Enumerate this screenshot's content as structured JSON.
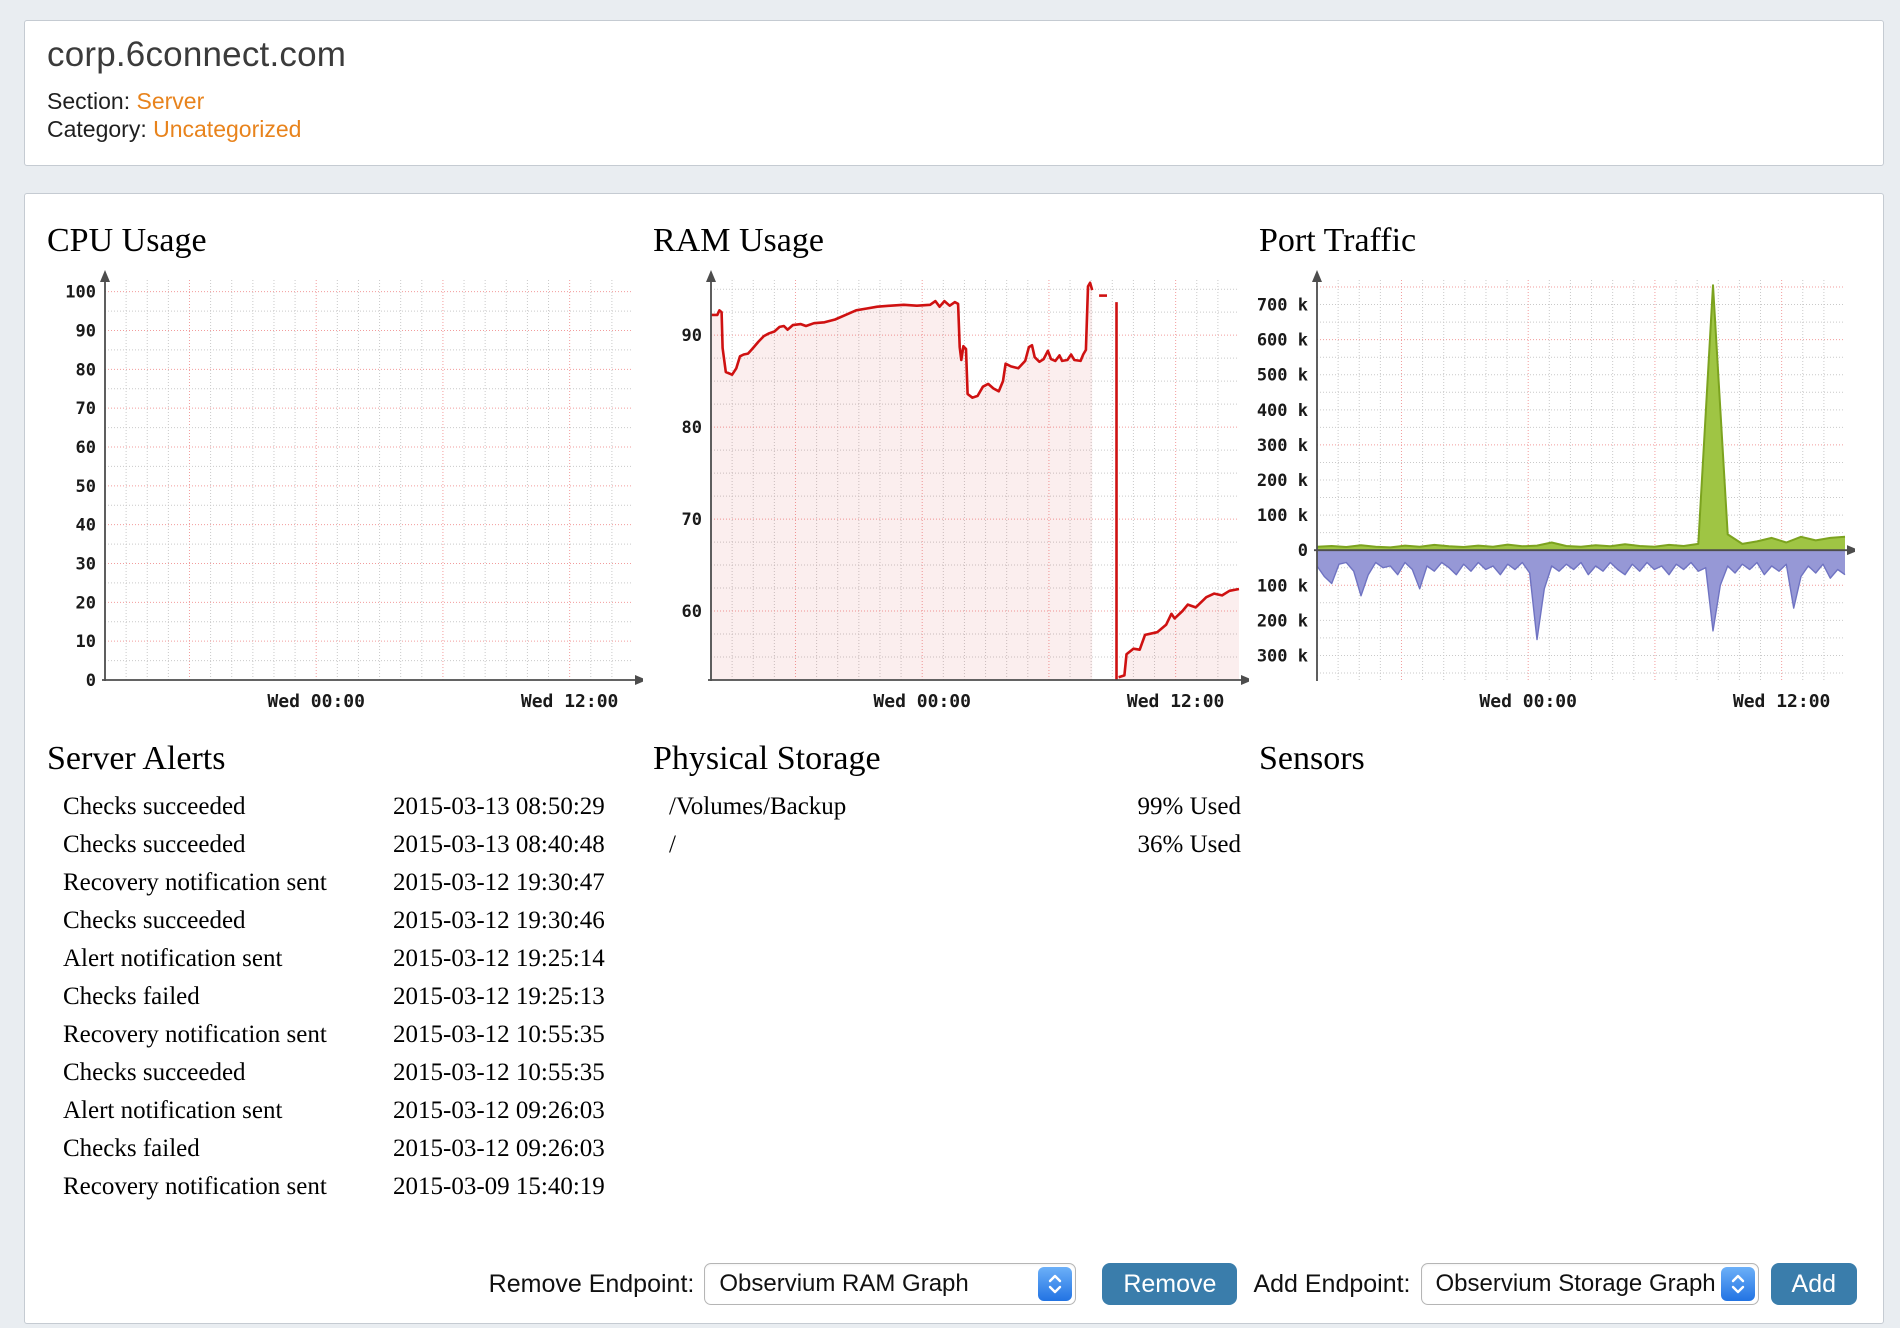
{
  "header": {
    "title": "corp.6connect.com",
    "section_label": "Section:",
    "section_value": "Server",
    "category_label": "Category:",
    "category_value": "Uncategorized"
  },
  "colors": {
    "page_bg": "#e9edf1",
    "panel_border": "#c5cbd2",
    "link_orange": "#e8831c",
    "button_blue": "#3a7dab",
    "stepper_blue": "#2273e3",
    "ram_line_red": "#cf1111",
    "traffic_green": "#9fc544",
    "traffic_purple": "#9698d6",
    "grid_red": "#f29c9c",
    "grid_gray": "#c9c9c9",
    "axis_gray": "#4d4d4d"
  },
  "charts": [
    {
      "title": "CPU Usage",
      "type": "line",
      "ymin": 0,
      "ymax": 103,
      "grid_min": 5,
      "grid_max": 100,
      "minor_step": 5,
      "majors": [
        10,
        20,
        30,
        40,
        50,
        60,
        70,
        80,
        90,
        100
      ],
      "ylabels": [
        {
          "v": 0,
          "t": "0"
        },
        {
          "v": 10,
          "t": "10"
        },
        {
          "v": 20,
          "t": "20"
        },
        {
          "v": 30,
          "t": "30"
        },
        {
          "v": 40,
          "t": "40"
        },
        {
          "v": 50,
          "t": "50"
        },
        {
          "v": 60,
          "t": "60"
        },
        {
          "v": 70,
          "t": "70"
        },
        {
          "v": 80,
          "t": "80"
        },
        {
          "v": 90,
          "t": "90"
        },
        {
          "v": 100,
          "t": "100"
        }
      ],
      "xlabels": [
        {
          "f": 0.4,
          "t": "Wed 00:00"
        },
        {
          "f": 0.88,
          "t": "Wed 12:00"
        }
      ],
      "x_majors": [
        0.16,
        0.4,
        0.64,
        0.88
      ],
      "x_minor_step": 0.04,
      "axis_at_zero": false,
      "series": []
    },
    {
      "title": "RAM Usage",
      "type": "area",
      "ymin": 52.5,
      "ymax": 96,
      "grid_min": 55,
      "grid_max": 95,
      "minor_step": 2.5,
      "majors": [
        60,
        70,
        80,
        90
      ],
      "ylabels": [
        {
          "v": 60,
          "t": "60"
        },
        {
          "v": 70,
          "t": "70"
        },
        {
          "v": 80,
          "t": "80"
        },
        {
          "v": 90,
          "t": "90"
        }
      ],
      "xlabels": [
        {
          "f": 0.4,
          "t": "Wed 00:00"
        },
        {
          "f": 0.88,
          "t": "Wed 12:00"
        }
      ],
      "x_majors": [
        0.16,
        0.4,
        0.64,
        0.88
      ],
      "x_minor_step": 0.04,
      "axis_at_zero": false,
      "series": [
        {
          "color": "#cf1111",
          "fill": "rgba(205,40,40,0.08)",
          "width": 2.6,
          "base": "min",
          "points": [
            [
              0,
              92.2
            ],
            [
              0.012,
              92.2
            ],
            [
              0.016,
              92.7
            ],
            [
              0.02,
              92.5
            ],
            [
              0.022,
              88.6
            ],
            [
              0.028,
              86.0
            ],
            [
              0.04,
              85.7
            ],
            [
              0.048,
              86.4
            ],
            [
              0.055,
              87.7
            ],
            [
              0.062,
              87.9
            ],
            [
              0.07,
              88.0
            ],
            [
              0.078,
              88.5
            ],
            [
              0.09,
              89.3
            ],
            [
              0.1,
              89.9
            ],
            [
              0.11,
              90.2
            ],
            [
              0.12,
              90.4
            ],
            [
              0.13,
              90.9
            ],
            [
              0.138,
              91.0
            ],
            [
              0.145,
              90.6
            ],
            [
              0.155,
              91.1
            ],
            [
              0.17,
              91.2
            ],
            [
              0.18,
              91.0
            ],
            [
              0.195,
              91.3
            ],
            [
              0.215,
              91.4
            ],
            [
              0.235,
              91.7
            ],
            [
              0.255,
              92.2
            ],
            [
              0.275,
              92.7
            ],
            [
              0.295,
              92.9
            ],
            [
              0.315,
              93.1
            ],
            [
              0.34,
              93.2
            ],
            [
              0.365,
              93.3
            ],
            [
              0.39,
              93.2
            ],
            [
              0.415,
              93.3
            ],
            [
              0.425,
              93.7
            ],
            [
              0.433,
              93.1
            ],
            [
              0.442,
              93.7
            ],
            [
              0.452,
              93.2
            ],
            [
              0.462,
              93.6
            ],
            [
              0.468,
              93.4
            ],
            [
              0.471,
              88.7
            ],
            [
              0.474,
              87.3
            ],
            [
              0.478,
              88.8
            ],
            [
              0.483,
              88.5
            ],
            [
              0.486,
              83.6
            ],
            [
              0.495,
              83.2
            ],
            [
              0.505,
              83.4
            ],
            [
              0.515,
              84.4
            ],
            [
              0.525,
              84.7
            ],
            [
              0.535,
              84.2
            ],
            [
              0.545,
              83.9
            ],
            [
              0.553,
              85.0
            ],
            [
              0.558,
              86.9
            ],
            [
              0.568,
              86.6
            ],
            [
              0.582,
              86.4
            ],
            [
              0.595,
              87.2
            ],
            [
              0.602,
              88.7
            ],
            [
              0.608,
              88.9
            ],
            [
              0.613,
              87.6
            ],
            [
              0.622,
              87.1
            ],
            [
              0.63,
              87.4
            ],
            [
              0.638,
              88.3
            ],
            [
              0.644,
              87.4
            ],
            [
              0.652,
              87.2
            ],
            [
              0.66,
              87.8
            ],
            [
              0.665,
              87.2
            ],
            [
              0.675,
              87.3
            ],
            [
              0.682,
              87.9
            ],
            [
              0.688,
              87.3
            ],
            [
              0.7,
              87.2
            ],
            [
              0.705,
              87.9
            ],
            [
              0.71,
              88.4
            ],
            [
              0.714,
              95.3
            ],
            [
              0.718,
              95.7
            ],
            [
              0.722,
              94.9
            ]
          ]
        },
        {
          "color": "#cf1111",
          "fill": null,
          "width": 2.6,
          "base": "min",
          "points": [
            [
              0.735,
              94.3
            ],
            [
              0.75,
              94.3
            ]
          ]
        },
        {
          "color": "#cf1111",
          "fill": "rgba(205,40,40,0.08)",
          "width": 2.6,
          "base": "min",
          "points": [
            [
              0.772,
              52.8
            ],
            [
              0.783,
              53.0
            ],
            [
              0.787,
              55.3
            ],
            [
              0.8,
              55.9
            ],
            [
              0.812,
              55.8
            ],
            [
              0.822,
              57.4
            ],
            [
              0.845,
              57.7
            ],
            [
              0.862,
              58.5
            ],
            [
              0.872,
              59.7
            ],
            [
              0.878,
              59.2
            ],
            [
              0.893,
              60.0
            ],
            [
              0.903,
              60.7
            ],
            [
              0.918,
              60.4
            ],
            [
              0.938,
              61.5
            ],
            [
              0.953,
              61.9
            ],
            [
              0.968,
              61.7
            ],
            [
              0.982,
              62.2
            ],
            [
              1,
              62.4
            ]
          ]
        }
      ],
      "vlines": [
        {
          "f": 0.768,
          "from": 93.6
        }
      ]
    },
    {
      "title": "Port Traffic",
      "type": "area",
      "ymin": -370,
      "ymax": 770,
      "grid_min": -350,
      "grid_max": 750,
      "minor_step": 50,
      "majors": [
        750,
        600,
        300,
        -100
      ],
      "ylabels": [
        {
          "v": 700,
          "t": "700 k"
        },
        {
          "v": 600,
          "t": "600 k"
        },
        {
          "v": 500,
          "t": "500 k"
        },
        {
          "v": 400,
          "t": "400 k"
        },
        {
          "v": 300,
          "t": "300 k"
        },
        {
          "v": 200,
          "t": "200 k"
        },
        {
          "v": 100,
          "t": "100 k"
        },
        {
          "v": 0,
          "t": "0"
        },
        {
          "v": -100,
          "t": "100 k"
        },
        {
          "v": -200,
          "t": "200 k"
        },
        {
          "v": -300,
          "t": "300 k"
        }
      ],
      "xlabels": [
        {
          "f": 0.4,
          "t": "Wed 00:00"
        },
        {
          "f": 0.88,
          "t": "Wed 12:00"
        }
      ],
      "x_majors": [
        0.16,
        0.4,
        0.64,
        0.88
      ],
      "x_minor_step": 0.04,
      "axis_at_zero": true,
      "series": [
        {
          "color": "#6f73c2",
          "fill": "#9698d6",
          "width": 1.4,
          "base": "zero",
          "values": [
            -45,
            -75,
            -95,
            -40,
            -35,
            -60,
            -130,
            -70,
            -35,
            -50,
            -45,
            -70,
            -35,
            -55,
            -110,
            -45,
            -60,
            -35,
            -50,
            -70,
            -40,
            -60,
            -35,
            -55,
            -45,
            -70,
            -40,
            -55,
            -35,
            -65,
            -255,
            -110,
            -45,
            -60,
            -40,
            -55,
            -35,
            -70,
            -45,
            -60,
            -35,
            -55,
            -70,
            -40,
            -60,
            -35,
            -55,
            -45,
            -70,
            -40,
            -55,
            -35,
            -60,
            -50,
            -230,
            -100,
            -45,
            -65,
            -40,
            -55,
            -35,
            -70,
            -45,
            -60,
            -40,
            -165,
            -75,
            -45,
            -65,
            -40,
            -80,
            -55,
            -70
          ]
        },
        {
          "color": "#7ca31f",
          "fill": "#9fc544",
          "width": 2,
          "base": "zero",
          "values": [
            10,
            12,
            9,
            14,
            10,
            8,
            13,
            10,
            15,
            11,
            9,
            13,
            10,
            16,
            11,
            13,
            22,
            12,
            10,
            14,
            11,
            17,
            12,
            10,
            15,
            12,
            18,
            755,
            45,
            18,
            25,
            35,
            22,
            38,
            28,
            35,
            38
          ]
        }
      ]
    }
  ],
  "alerts": {
    "title": "Server Alerts",
    "items": [
      {
        "label": "Checks succeeded",
        "time": "2015-03-13 08:50:29"
      },
      {
        "label": "Checks succeeded",
        "time": "2015-03-13 08:40:48"
      },
      {
        "label": "Recovery notification sent",
        "time": "2015-03-12 19:30:47"
      },
      {
        "label": "Checks succeeded",
        "time": "2015-03-12 19:30:46"
      },
      {
        "label": "Alert notification sent",
        "time": "2015-03-12 19:25:14"
      },
      {
        "label": "Checks failed",
        "time": "2015-03-12 19:25:13"
      },
      {
        "label": "Recovery notification sent",
        "time": "2015-03-12 10:55:35"
      },
      {
        "label": "Checks succeeded",
        "time": "2015-03-12 10:55:35"
      },
      {
        "label": "Alert notification sent",
        "time": "2015-03-12 09:26:03"
      },
      {
        "label": "Checks failed",
        "time": "2015-03-12 09:26:03"
      },
      {
        "label": "Recovery notification sent",
        "time": "2015-03-09 15:40:19"
      }
    ]
  },
  "storage": {
    "title": "Physical Storage",
    "items": [
      {
        "name": "/Volumes/Backup",
        "used": "99% Used"
      },
      {
        "name": "/",
        "used": "36% Used"
      }
    ]
  },
  "sensors": {
    "title": "Sensors"
  },
  "controls": {
    "remove_label": "Remove Endpoint:",
    "remove_select": "Observium RAM Graph",
    "remove_button": "Remove",
    "add_label": "Add Endpoint:",
    "add_select": "Observium Storage Graph",
    "add_button": "Add"
  }
}
